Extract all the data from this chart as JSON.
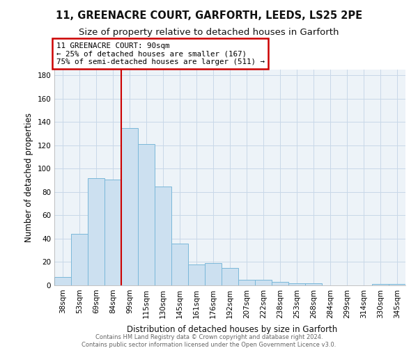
{
  "title": "11, GREENACRE COURT, GARFORTH, LEEDS, LS25 2PE",
  "subtitle": "Size of property relative to detached houses in Garforth",
  "xlabel": "Distribution of detached houses by size in Garforth",
  "ylabel": "Number of detached properties",
  "bar_labels": [
    "38sqm",
    "53sqm",
    "69sqm",
    "84sqm",
    "99sqm",
    "115sqm",
    "130sqm",
    "145sqm",
    "161sqm",
    "176sqm",
    "192sqm",
    "207sqm",
    "222sqm",
    "238sqm",
    "253sqm",
    "268sqm",
    "284sqm",
    "299sqm",
    "314sqm",
    "330sqm",
    "345sqm"
  ],
  "bar_values": [
    7,
    44,
    92,
    91,
    135,
    121,
    85,
    36,
    18,
    19,
    15,
    5,
    5,
    3,
    2,
    2,
    0,
    0,
    0,
    1,
    1
  ],
  "bar_color": "#cce0f0",
  "bar_edgecolor": "#7ab8d9",
  "property_line_index": 4,
  "property_line_color": "#cc0000",
  "annotation_line1": "11 GREENACRE COURT: 90sqm",
  "annotation_line2": "← 25% of detached houses are smaller (167)",
  "annotation_line3": "75% of semi-detached houses are larger (511) →",
  "annotation_box_color": "#cc0000",
  "yticks": [
    0,
    20,
    40,
    60,
    80,
    100,
    120,
    140,
    160,
    180
  ],
  "ylim": [
    0,
    185
  ],
  "footer_text": "Contains HM Land Registry data © Crown copyright and database right 2024.\nContains public sector information licensed under the Open Government Licence v3.0.",
  "title_fontsize": 10.5,
  "subtitle_fontsize": 9.5,
  "axis_label_fontsize": 8.5,
  "tick_fontsize": 7.5,
  "background_color": "#edf3f8",
  "grid_color": "#c8d8e8"
}
